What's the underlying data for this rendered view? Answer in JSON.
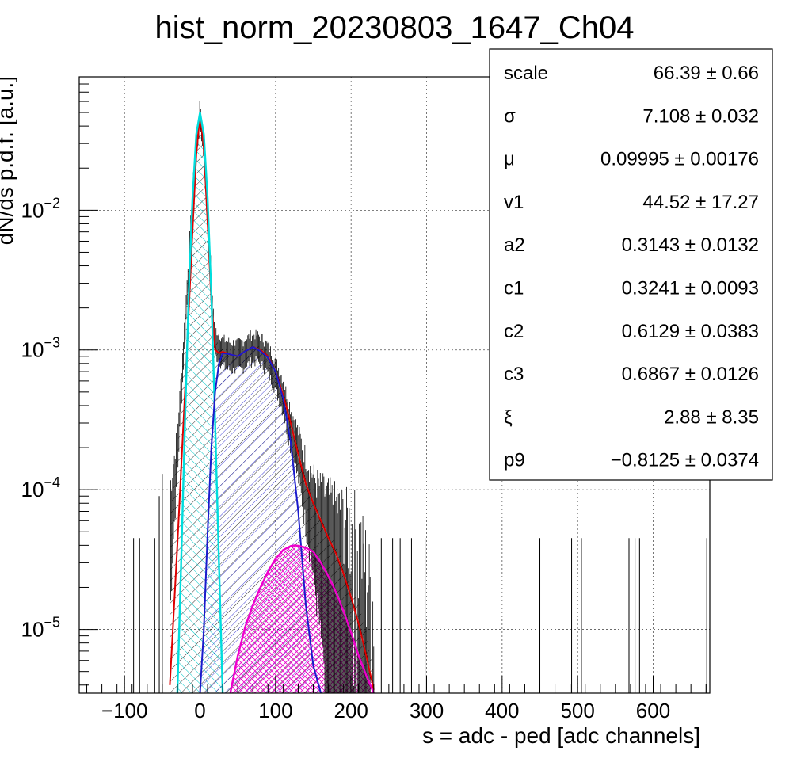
{
  "chart_data": {
    "type": "line",
    "title": "hist_norm_20230803_1647_Ch04",
    "xlabel": "s = adc - ped [adc channels]",
    "ylabel": "dN/ds p.d.f. [a.u.]",
    "xlim": [
      -160,
      675
    ],
    "ylim": [
      3.5e-06,
      0.09
    ],
    "y_scale": "log",
    "grid": true,
    "x_ticks": [
      -100,
      0,
      100,
      200,
      300,
      400,
      500,
      600
    ],
    "x_tick_labels": [
      "−100",
      "0",
      "100",
      "200",
      "300",
      "400",
      "500",
      "600"
    ],
    "y_ticks": [
      {
        "value": 1e-05,
        "base": "10",
        "exp": "−5"
      },
      {
        "value": 0.0001,
        "base": "10",
        "exp": "−4"
      },
      {
        "value": 0.001,
        "base": "10",
        "exp": "−3"
      },
      {
        "value": 0.01,
        "base": "10",
        "exp": "−2"
      }
    ],
    "series": [
      {
        "color": "#000000",
        "style": "histogram with error bars, hatched",
        "x": [
          -40,
          -30,
          -20,
          -10,
          -5,
          0,
          5,
          10,
          15,
          18,
          20,
          25,
          30,
          40,
          50,
          60,
          70,
          80,
          90,
          100,
          110,
          120,
          130,
          140,
          150,
          160,
          170,
          180,
          190,
          200,
          210,
          220,
          230
        ],
        "y": [
          6e-05,
          0.0002,
          0.0015,
          0.012,
          0.03,
          0.05,
          0.03,
          0.01,
          0.003,
          0.0015,
          0.0012,
          0.0011,
          0.001,
          0.00095,
          0.00093,
          0.001,
          0.0011,
          0.00105,
          0.0009,
          0.0007,
          0.0005,
          0.0003,
          0.0002,
          0.00012,
          8e-05,
          6e-05,
          5e-05,
          4e-05,
          3e-05,
          2e-05,
          1.5e-05,
          1e-05,
          5e-06
        ]
      },
      {
        "color": "#dd0000",
        "style": "total fit",
        "x": [
          -40,
          -30,
          -20,
          -10,
          -5,
          0,
          5,
          10,
          15,
          20,
          25,
          30,
          40,
          50,
          60,
          70,
          80,
          90,
          100,
          110,
          120,
          130,
          140,
          150,
          160,
          170,
          180,
          190,
          200,
          210,
          220,
          230
        ],
        "y": [
          4e-06,
          4e-05,
          0.0005,
          0.007,
          0.025,
          0.048,
          0.028,
          0.008,
          0.0022,
          0.001,
          0.00095,
          0.00097,
          0.00093,
          0.0009,
          0.00098,
          0.00105,
          0.001,
          0.0009,
          0.0007,
          0.00048,
          0.0003,
          0.00018,
          0.00011,
          8e-05,
          6e-05,
          4.5e-05,
          3.5e-05,
          2.5e-05,
          1.7e-05,
          1.1e-05,
          6.5e-06,
          3.7e-06
        ]
      },
      {
        "color": "#00dddd",
        "style": "pedestal component, hatched",
        "x": [
          -30,
          -25,
          -20,
          -15,
          -10,
          -5,
          0,
          5,
          10,
          15,
          20,
          25,
          30
        ],
        "y": [
          3.5e-06,
          3e-05,
          0.0003,
          0.0025,
          0.012,
          0.035,
          0.05,
          0.035,
          0.012,
          0.0025,
          0.0003,
          3e-05,
          3.5e-06
        ]
      },
      {
        "color": "#1a1acc",
        "style": "signal component, hatched",
        "x": [
          0,
          5,
          10,
          15,
          20,
          25,
          30,
          40,
          50,
          60,
          70,
          80,
          90,
          100,
          110,
          120,
          130,
          140,
          150,
          160
        ],
        "y": [
          3.5e-06,
          1e-05,
          5e-05,
          0.0002,
          0.0005,
          0.0008,
          0.00095,
          0.00093,
          0.0009,
          0.00098,
          0.00105,
          0.00098,
          0.00088,
          0.0007,
          0.00045,
          0.00022,
          7e-05,
          1.5e-05,
          5.5e-06,
          3.5e-06
        ]
      },
      {
        "color": "#ee00cc",
        "style": "tail component, cross-hatched",
        "x": [
          40,
          50,
          60,
          70,
          80,
          90,
          100,
          110,
          120,
          125,
          130,
          140,
          150,
          160,
          170,
          180,
          190,
          200,
          210,
          220,
          230
        ],
        "y": [
          3.5e-06,
          6.5e-06,
          1.05e-05,
          1.5e-05,
          2e-05,
          2.6e-05,
          3.2e-05,
          3.7e-05,
          3.95e-05,
          4e-05,
          3.97e-05,
          3.85e-05,
          3.6e-05,
          3e-05,
          2.4e-05,
          1.85e-05,
          1.35e-05,
          9.5e-06,
          6.5e-06,
          4.7e-06,
          3.5e-06
        ]
      }
    ],
    "stats_box": [
      {
        "name": "scale",
        "value": "66.39 ± 0.66"
      },
      {
        "name": "σ",
        "value": "7.108 ± 0.032"
      },
      {
        "name": "μ",
        "value": "0.09995 ± 0.00176"
      },
      {
        "name": "v1",
        "value": "44.52 ± 17.27"
      },
      {
        "name": "a2",
        "value": "0.3143 ± 0.0132"
      },
      {
        "name": "c1",
        "value": "0.3241 ± 0.0093"
      },
      {
        "name": "c2",
        "value": "0.6129 ± 0.0383"
      },
      {
        "name": "c3",
        "value": "0.6867 ± 0.0126"
      },
      {
        "name": "ξ",
        "value": "2.88 ± 8.35"
      },
      {
        "name": "p9",
        "value": "−0.8125 ± 0.0374"
      }
    ],
    "stats_box_placement": "top-right",
    "noise_spikes": [
      {
        "x": -88,
        "y": 4.5e-05
      },
      {
        "x": -80,
        "y": 4.5e-05
      },
      {
        "x": -60,
        "y": 4.5e-05
      },
      {
        "x": -54,
        "y": 9e-05
      },
      {
        "x": -50,
        "y": 0.00013
      },
      {
        "x": 240,
        "y": 4.5e-05
      },
      {
        "x": 255,
        "y": 4.5e-05
      },
      {
        "x": 265,
        "y": 4.5e-05
      },
      {
        "x": 280,
        "y": 4.5e-05
      },
      {
        "x": 298,
        "y": 4.5e-05
      },
      {
        "x": 450,
        "y": 4.5e-05
      },
      {
        "x": 492,
        "y": 4.5e-05
      },
      {
        "x": 505,
        "y": 4.5e-05
      },
      {
        "x": 568,
        "y": 4.5e-05
      },
      {
        "x": 576,
        "y": 4.5e-05
      },
      {
        "x": 582,
        "y": 4.5e-05
      },
      {
        "x": 671,
        "y": 4.5e-05
      }
    ]
  }
}
